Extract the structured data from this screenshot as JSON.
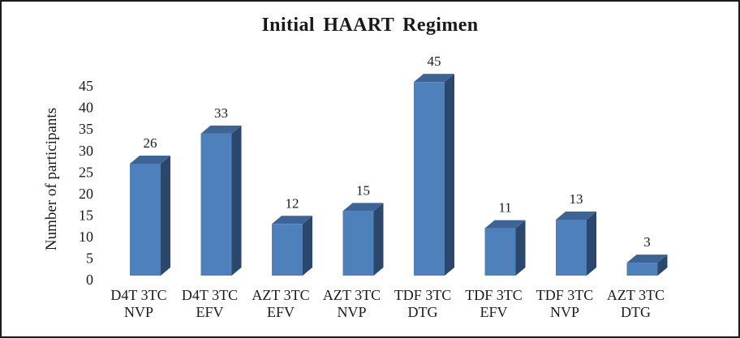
{
  "frame": {
    "background": "#ffffff",
    "border_color": "#1c1c1c"
  },
  "chart_data": {
    "type": "bar",
    "style": "3d-column",
    "title": "Initial HAART Regimen",
    "xlabel": "",
    "ylabel": "Number of participants",
    "categories": [
      "D4T 3TC NVP",
      "D4T 3TC EFV",
      "AZT 3TC EFV",
      "AZT 3TC NVP",
      "TDF 3TC DTG",
      "TDF 3TC EFV",
      "TDF 3TC NVP",
      "AZT 3TC DTG"
    ],
    "values": [
      26,
      33,
      12,
      15,
      45,
      11,
      13,
      3
    ],
    "data_labels_shown": true,
    "yticks": [
      0,
      5,
      10,
      15,
      20,
      25,
      30,
      35,
      40,
      45
    ],
    "ylim": [
      0,
      45
    ],
    "grid": false,
    "axis_lines": false,
    "legend_position": "none",
    "colors": {
      "bar_front": "#4E80BC",
      "bar_top": "#3D6494",
      "bar_side": "#2B486C",
      "text": "#1a1a1a"
    }
  }
}
